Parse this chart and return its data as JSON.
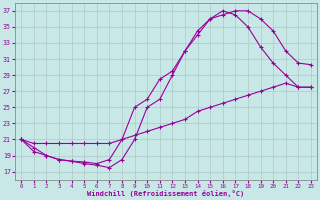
{
  "xlabel": "Windchill (Refroidissement éolien,°C)",
  "ylabel": "",
  "xlim": [
    -0.5,
    23.5
  ],
  "ylim": [
    16,
    38
  ],
  "yticks": [
    17,
    19,
    21,
    23,
    25,
    27,
    29,
    31,
    33,
    35,
    37
  ],
  "xticks": [
    0,
    1,
    2,
    3,
    4,
    5,
    6,
    7,
    8,
    9,
    10,
    11,
    12,
    13,
    14,
    15,
    16,
    17,
    18,
    19,
    20,
    21,
    22,
    23
  ],
  "bg_color": "#c8e8e8",
  "line_color": "#990099",
  "grid_color": "#b0c8c8",
  "curve1_x": [
    0,
    1,
    2,
    3,
    4,
    5,
    6,
    7,
    8,
    9,
    10,
    11,
    12,
    13,
    14,
    15,
    16,
    17,
    18,
    19,
    20,
    21,
    22,
    23
  ],
  "curve1_y": [
    21,
    20,
    19,
    18.5,
    18.3,
    18.0,
    17.8,
    17.5,
    18.5,
    21.0,
    25.0,
    26.0,
    29.0,
    32.0,
    34.5,
    36.0,
    36.5,
    37.0,
    37.0,
    36.0,
    34.5,
    32.0,
    30.5,
    30.3
  ],
  "curve2_x": [
    0,
    1,
    2,
    3,
    4,
    5,
    6,
    7,
    8,
    9,
    10,
    11,
    12,
    13,
    14,
    15,
    16,
    17,
    18,
    19,
    20,
    21,
    22,
    23
  ],
  "curve2_y": [
    21,
    19.5,
    19.0,
    18.5,
    18.3,
    18.2,
    18.0,
    18.5,
    21.0,
    25.0,
    26.0,
    28.5,
    29.5,
    32.0,
    34.0,
    36.0,
    37.0,
    36.5,
    35.0,
    32.5,
    30.5,
    29.0,
    27.5,
    27.5
  ],
  "curve3_x": [
    0,
    1,
    2,
    3,
    4,
    5,
    6,
    7,
    8,
    9,
    10,
    11,
    12,
    13,
    14,
    15,
    16,
    17,
    18,
    19,
    20,
    21,
    22,
    23
  ],
  "curve3_y": [
    21.0,
    20.5,
    20.5,
    20.5,
    20.5,
    20.5,
    20.5,
    20.5,
    21.0,
    21.5,
    22.0,
    22.5,
    23.0,
    23.5,
    24.5,
    25.0,
    25.5,
    26.0,
    26.5,
    27.0,
    27.5,
    28.0,
    27.5,
    27.5
  ]
}
